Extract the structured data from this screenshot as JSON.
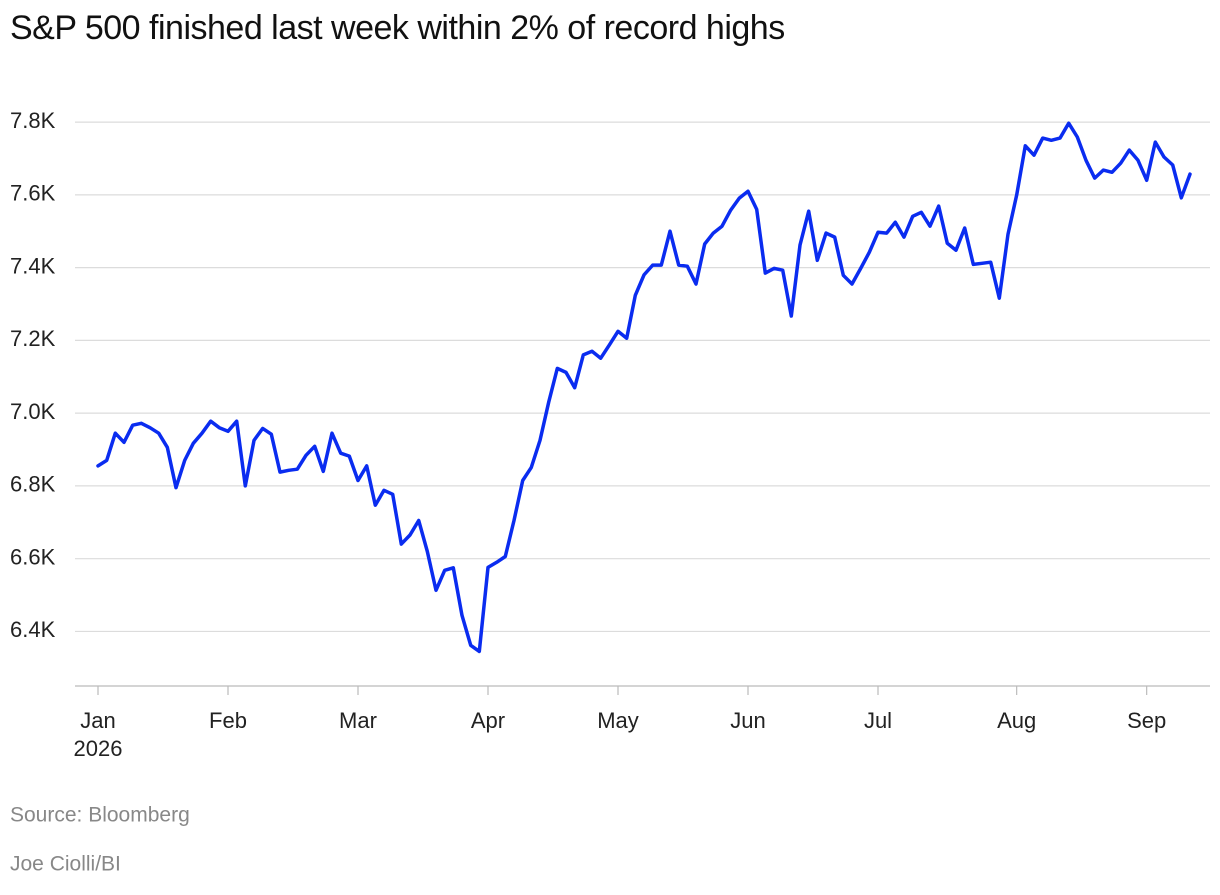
{
  "chart_data": {
    "type": "line",
    "title": "S&P 500 finished last week within 2% of record highs",
    "source": "Source: Bloomberg",
    "credit": "Joe Ciolli/BI",
    "x_sublabel": "2026",
    "color": "#0a2cf0",
    "grid": true,
    "ylim": [
      6250,
      7880
    ],
    "yticks": [
      {
        "value": 6400,
        "label": "6.4K"
      },
      {
        "value": 6600,
        "label": "6.6K"
      },
      {
        "value": 6800,
        "label": "6.8K"
      },
      {
        "value": 7000,
        "label": "7.0K"
      },
      {
        "value": 7200,
        "label": "7.2K"
      },
      {
        "value": 7400,
        "label": "7.4K"
      },
      {
        "value": 7600,
        "label": "7.6K"
      },
      {
        "value": 7800,
        "label": "7.8K"
      }
    ],
    "categories": [
      "Jan",
      null,
      null,
      null,
      null,
      null,
      null,
      null,
      null,
      null,
      null,
      null,
      null,
      null,
      null,
      "Feb",
      null,
      null,
      null,
      null,
      null,
      null,
      null,
      null,
      null,
      null,
      null,
      null,
      null,
      null,
      "Mar",
      null,
      null,
      null,
      null,
      null,
      null,
      null,
      null,
      null,
      null,
      null,
      null,
      null,
      null,
      "Apr",
      null,
      null,
      null,
      null,
      null,
      null,
      null,
      null,
      null,
      null,
      null,
      null,
      null,
      null,
      "May",
      null,
      null,
      null,
      null,
      null,
      null,
      null,
      null,
      null,
      null,
      null,
      null,
      null,
      null,
      "Jun",
      null,
      null,
      null,
      null,
      null,
      null,
      null,
      null,
      null,
      null,
      null,
      null,
      null,
      null,
      "Jul",
      null,
      null,
      null,
      null,
      null,
      null,
      null,
      null,
      null,
      null,
      null,
      null,
      null,
      null,
      null,
      "Aug",
      null,
      null,
      null,
      null,
      null,
      null,
      null,
      null,
      null,
      null,
      null,
      null,
      null,
      null,
      "Sep",
      null,
      null,
      null,
      null,
      null
    ],
    "values": [
      6855,
      6870,
      6945,
      6920,
      6967,
      6972,
      6960,
      6945,
      6906,
      6795,
      6870,
      6917,
      6945,
      6978,
      6960,
      6950,
      6978,
      6800,
      6925,
      6958,
      6942,
      6838,
      6843,
      6846,
      6884,
      6909,
      6840,
      6945,
      6890,
      6882,
      6815,
      6855,
      6747,
      6788,
      6777,
      6640,
      6665,
      6705,
      6620,
      6513,
      6568,
      6575,
      6444,
      6362,
      6345,
      6576,
      6590,
      6606,
      6705,
      6815,
      6851,
      6925,
      7030,
      7123,
      7112,
      7070,
      7160,
      7170,
      7151,
      7187,
      7225,
      7206,
      7324,
      7380,
      7407,
      7407,
      7500,
      7407,
      7404,
      7355,
      7465,
      7495,
      7514,
      7558,
      7591,
      7610,
      7560,
      7385,
      7398,
      7393,
      7267,
      7462,
      7555,
      7420,
      7495,
      7484,
      7379,
      7355,
      7398,
      7442,
      7497,
      7495,
      7525,
      7484,
      7541,
      7552,
      7514,
      7569,
      7467,
      7448,
      7509,
      7409,
      7412,
      7415,
      7316,
      7492,
      7600,
      7735,
      7709,
      7756,
      7750,
      7756,
      7797,
      7759,
      7695,
      7646,
      7668,
      7662,
      7687,
      7723,
      7695,
      7640,
      7745,
      7704,
      7682,
      7592,
      7657
    ]
  }
}
